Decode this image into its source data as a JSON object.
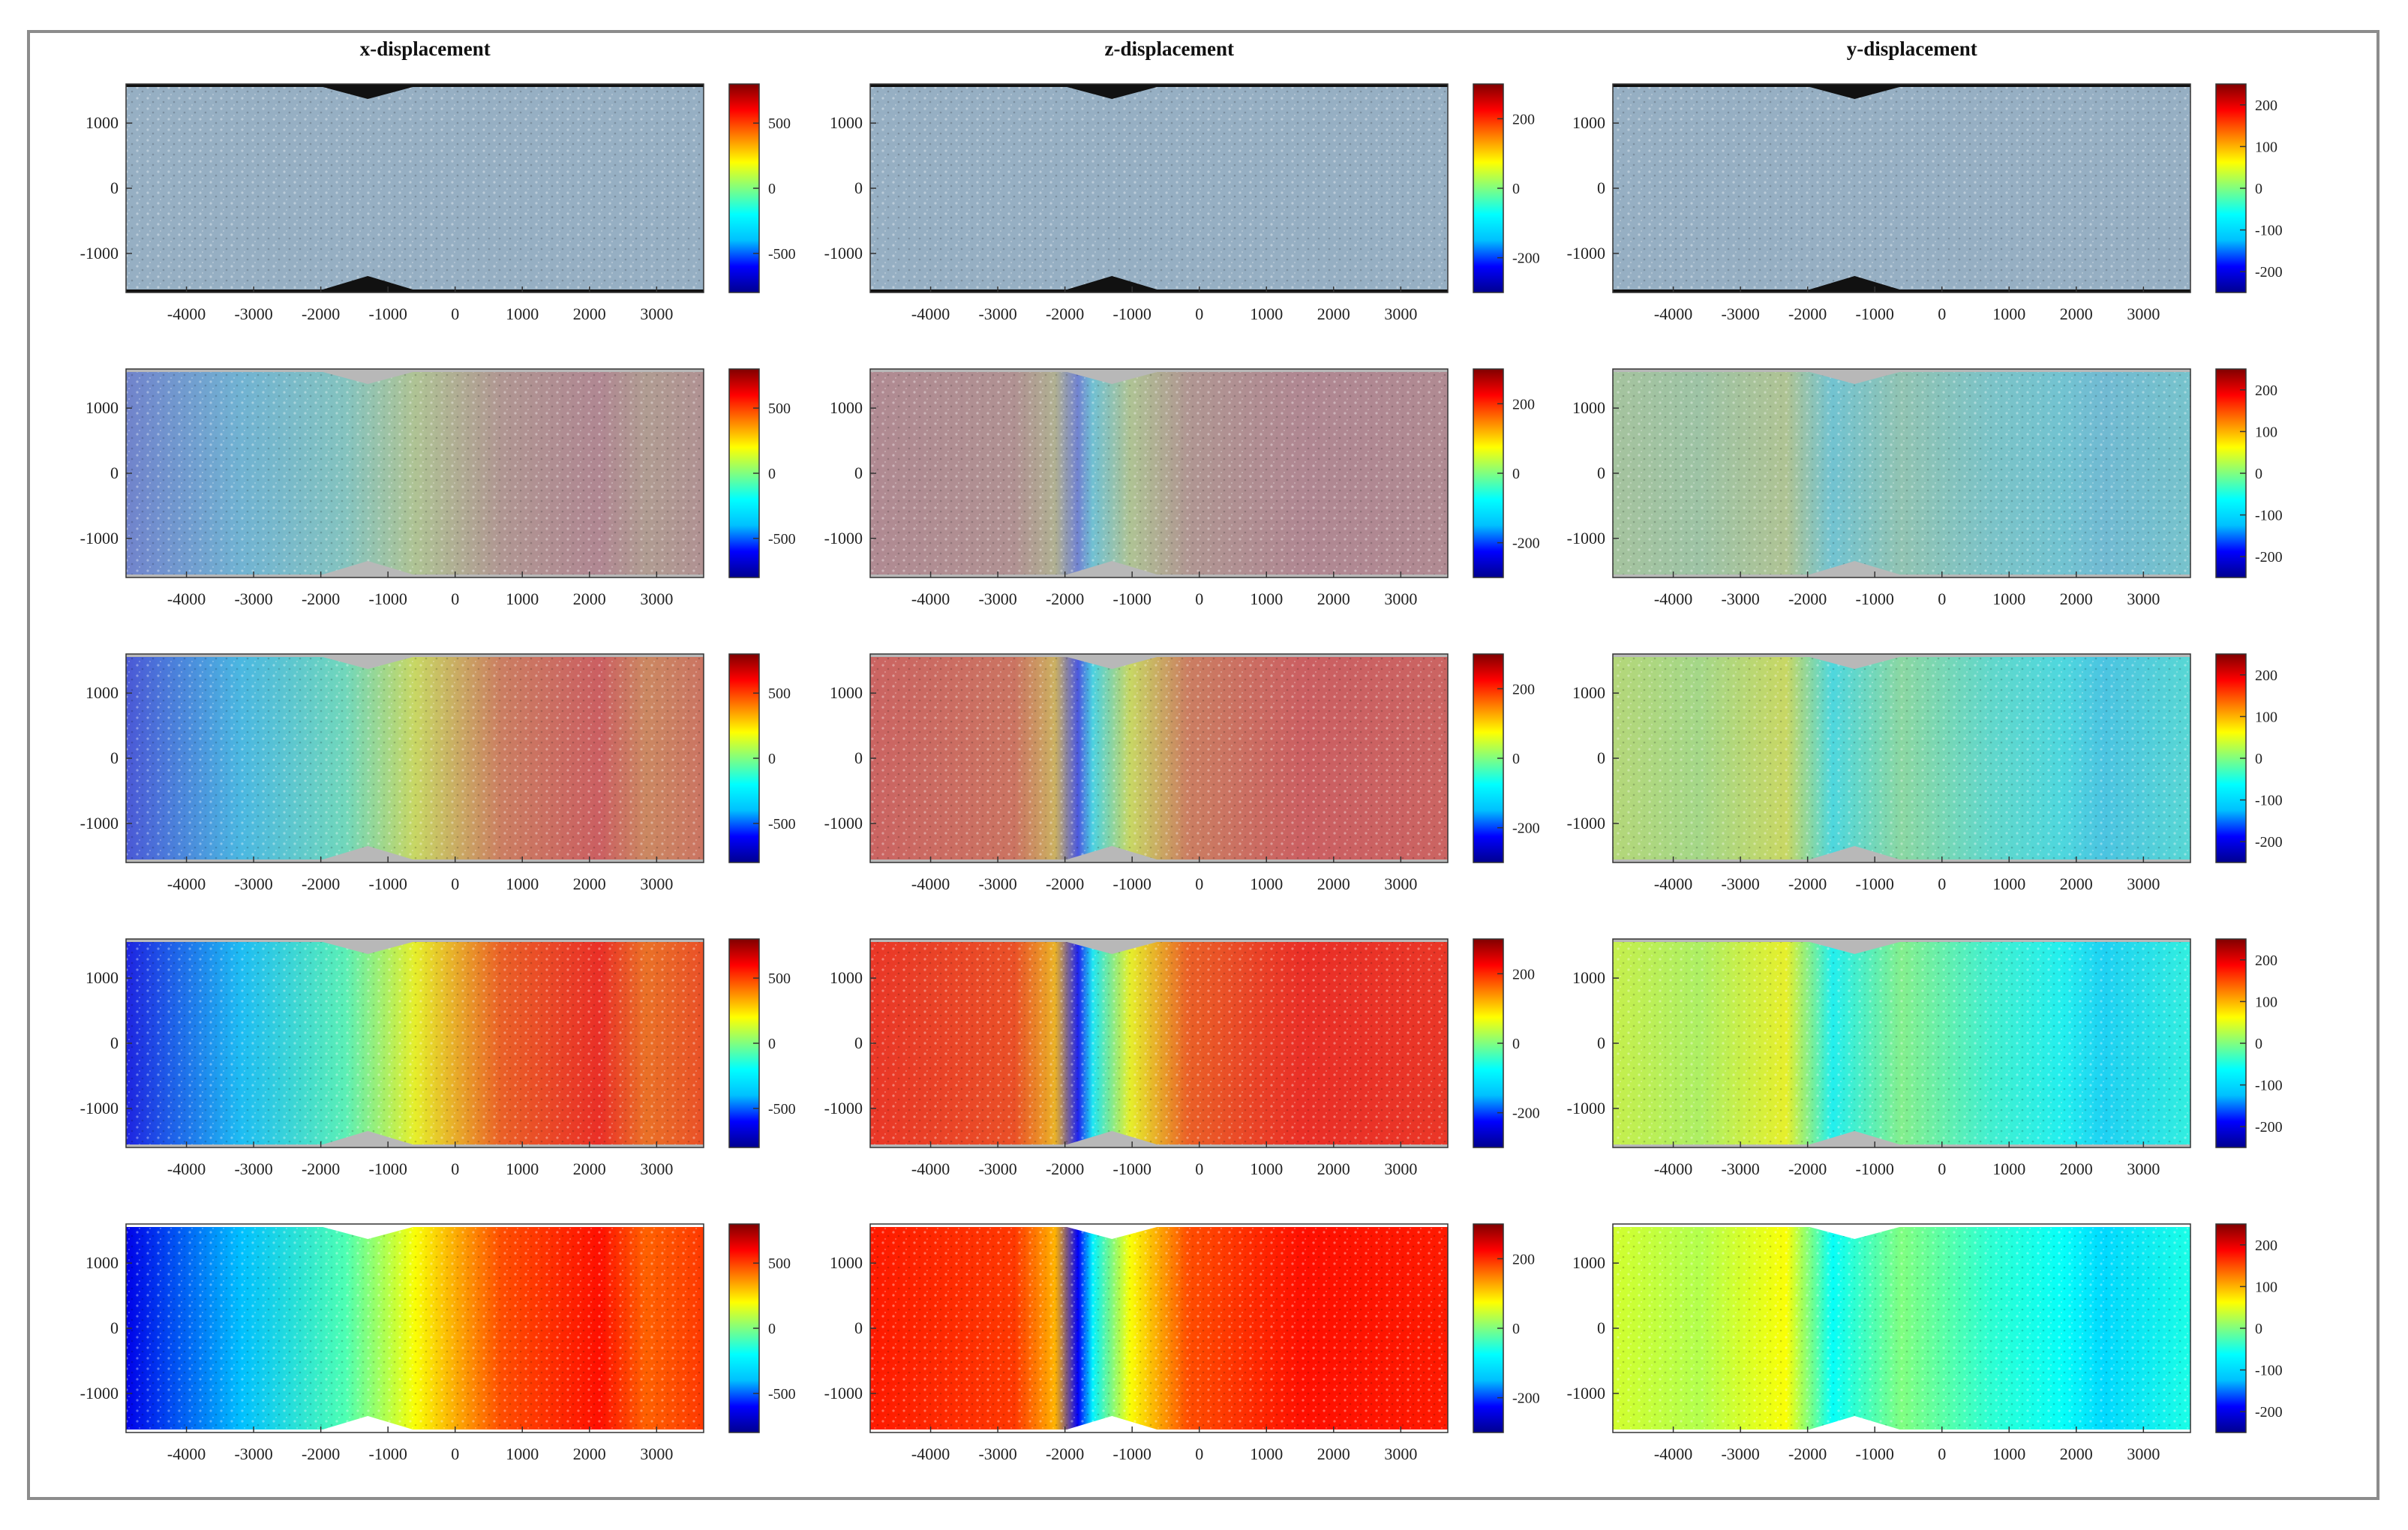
{
  "chart_data": {
    "type": "heatmap",
    "description_rows": 5,
    "columns": [
      {
        "title": "x-displacement",
        "colorbar_ticks": [
          500,
          0,
          -500
        ],
        "clim": [
          -800,
          800
        ],
        "field_stages": [
          0,
          0.25,
          0.5,
          0.8,
          1.0
        ]
      },
      {
        "title": "z-displacement",
        "colorbar_ticks": [
          200,
          0,
          -200
        ],
        "clim": [
          -300,
          300
        ],
        "field_stages": [
          0,
          0.25,
          0.5,
          0.8,
          1.0
        ]
      },
      {
        "title": "y-displacement",
        "colorbar_ticks": [
          200,
          100,
          0,
          -100,
          -200
        ],
        "clim": [
          -250,
          250
        ],
        "field_stages": [
          0,
          0.25,
          0.5,
          0.8,
          1.0
        ]
      }
    ],
    "xticks": [
      -4000,
      -3000,
      -2000,
      -1000,
      0,
      1000,
      2000,
      3000
    ],
    "yticks": [
      1000,
      0,
      -1000
    ],
    "xlim": [
      -4900,
      3700
    ],
    "ylim": [
      -1600,
      1600
    ],
    "colormap": [
      "#00008f",
      "#0000ff",
      "#00c0ff",
      "#00ffff",
      "#80ff80",
      "#ffff00",
      "#ff8000",
      "#ff0000",
      "#800000"
    ]
  }
}
